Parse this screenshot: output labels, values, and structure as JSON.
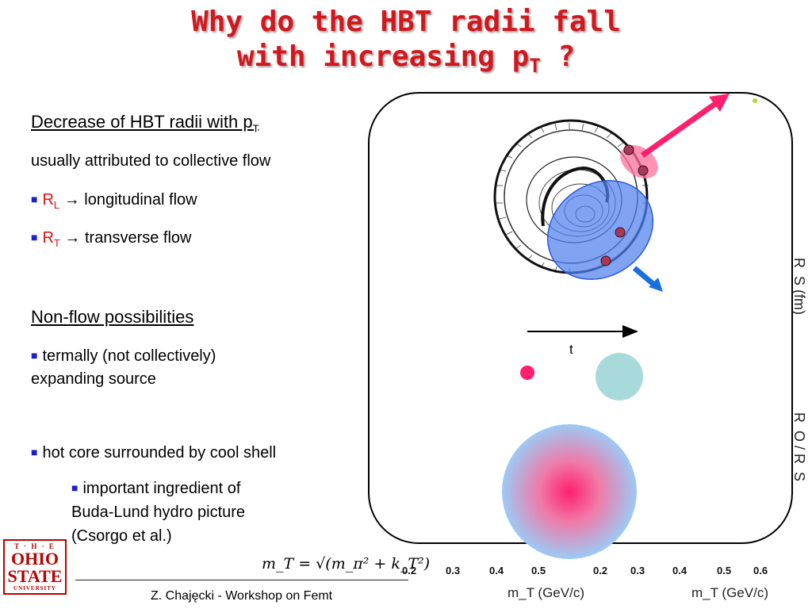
{
  "title": {
    "line1": "Why do the HBT radii fall",
    "line2_main": "with increasing p",
    "line2_sub": "T",
    "line2_end": " ?"
  },
  "left": {
    "heading1_main": "Decrease of HBT radii with p",
    "heading1_sub": "T",
    "line_flow": "usually attributed to collective flow",
    "bullet1_R": "R",
    "bullet1_sub": "L",
    "bullet1_text": " → longitudinal flow",
    "bullet2_R": "R",
    "bullet2_sub": "T",
    "bullet2_text": " → transverse flow",
    "heading2": "Non-flow possibilities",
    "bullet3_line1": "termally (not collectively)",
    "bullet3_line2": "expanding source",
    "bullet4": "hot core surrounded by cool shell",
    "sub_bullet_line1": "important ingredient of",
    "sub_bullet_line2": "Buda-Lund hydro picture",
    "sub_bullet_line3": "(Csorgo et al.)"
  },
  "formula": "m_T = √(m_π² + k_T²)",
  "footer": "Z. Chajęcki - Workshop on Femt",
  "logo": {
    "line1": "T · H · E",
    "line2": "OHIO",
    "line3": "STATE",
    "line4": "UNIVERSITY"
  },
  "diagram": {
    "time_label": "t",
    "axis_label_rs": "R_S (fm)",
    "axis_label_ro": "R_O / R_S",
    "mt_label": "m_T (GeV/c)",
    "ticks_left": [
      "0.2",
      "0.3",
      "0.4",
      "0.5"
    ],
    "ticks_right": [
      "0.2",
      "0.3",
      "0.4",
      "0.5",
      "0.6"
    ]
  },
  "colors": {
    "title": "#d3171e",
    "bullet": "#1f1fc9",
    "pink": "#ff1f6e",
    "blue_arrow": "#1a6fe0",
    "teal": "#a8dadc"
  }
}
